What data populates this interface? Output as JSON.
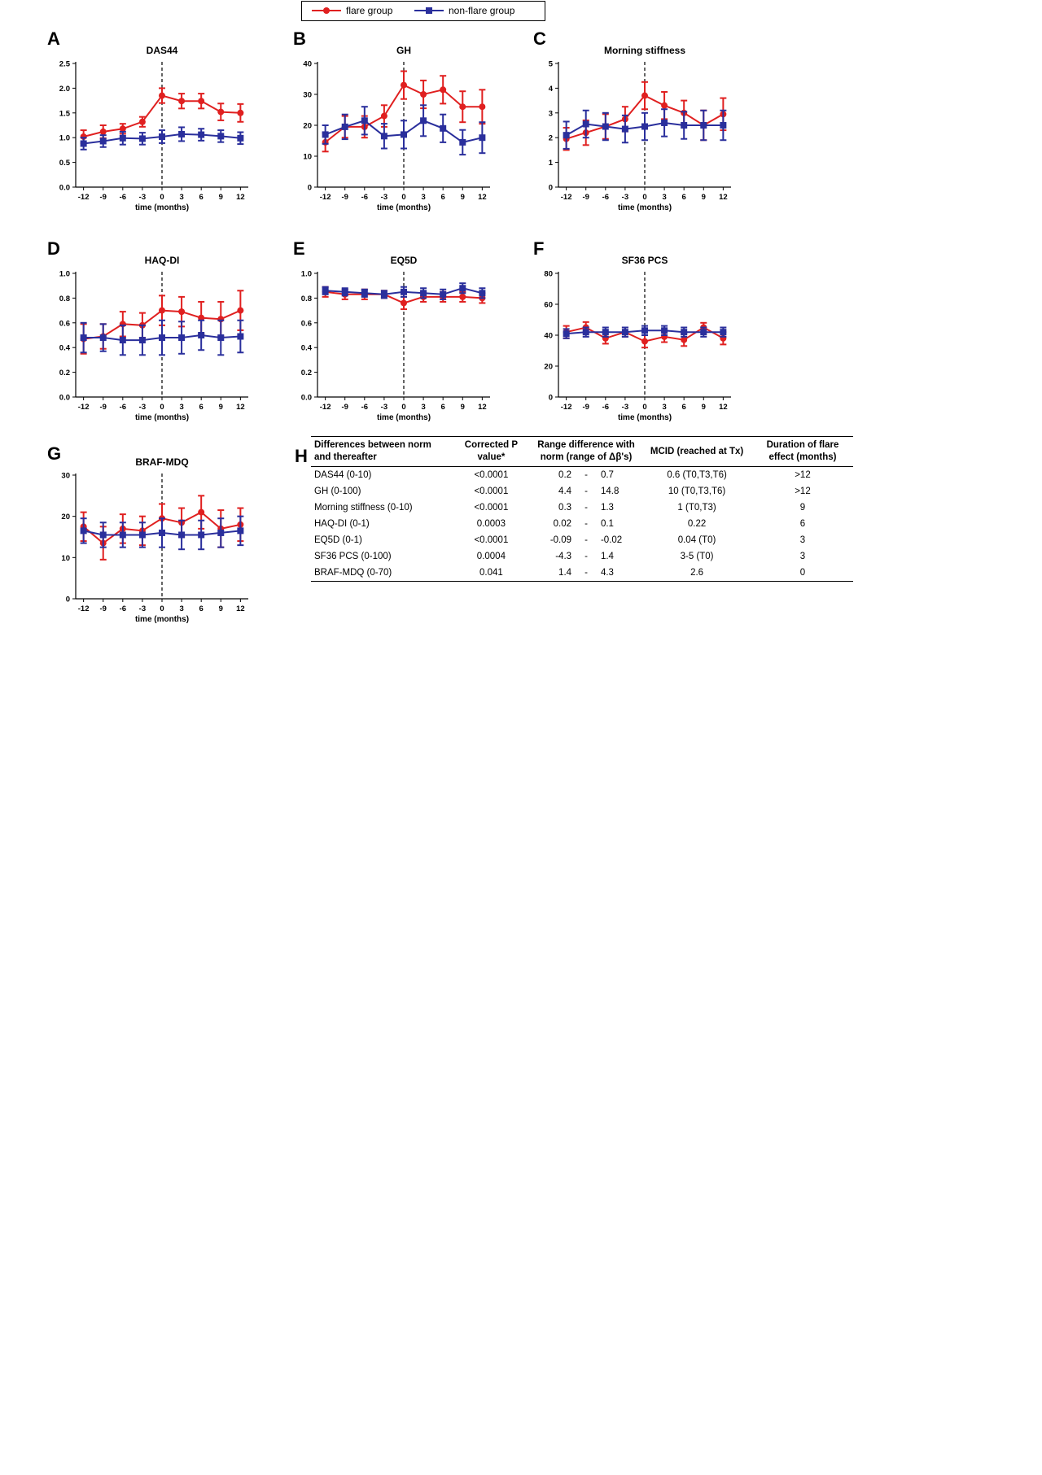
{
  "legend": {
    "flare_label": "flare group",
    "nonflare_label": "non-flare group",
    "flare_color": "#e02020",
    "nonflare_color": "#2a2f9c"
  },
  "x_ticks": [
    -12,
    -9,
    -6,
    -3,
    0,
    3,
    6,
    9,
    12
  ],
  "x_axis_label": "time (months)",
  "chart_data": [
    {
      "letter": "A",
      "title": "DAS44",
      "type": "line",
      "ylim": [
        0,
        2.5
      ],
      "yticks": [
        0.0,
        0.5,
        1.0,
        1.5,
        2.0,
        2.5
      ],
      "ydecimals": 1,
      "x": [
        -12,
        -9,
        -6,
        -3,
        0,
        3,
        6,
        9,
        12
      ],
      "series": [
        {
          "name": "flare group",
          "values": [
            1.02,
            1.12,
            1.18,
            1.32,
            1.85,
            1.74,
            1.74,
            1.52,
            1.5
          ],
          "err": [
            0.13,
            0.13,
            0.1,
            0.1,
            0.15,
            0.15,
            0.15,
            0.17,
            0.18
          ]
        },
        {
          "name": "non-flare group",
          "values": [
            0.88,
            0.93,
            0.99,
            0.98,
            1.02,
            1.07,
            1.06,
            1.03,
            0.99
          ],
          "err": [
            0.12,
            0.12,
            0.13,
            0.12,
            0.13,
            0.14,
            0.12,
            0.12,
            0.12
          ]
        }
      ]
    },
    {
      "letter": "B",
      "title": "GH",
      "type": "line",
      "ylim": [
        0,
        40
      ],
      "yticks": [
        0,
        10,
        20,
        30,
        40
      ],
      "ydecimals": 0,
      "x": [
        -12,
        -9,
        -6,
        -3,
        0,
        3,
        6,
        9,
        12
      ],
      "series": [
        {
          "name": "flare group",
          "values": [
            14.5,
            19.5,
            19.5,
            23.0,
            33.0,
            30.0,
            31.5,
            26.0,
            26.0
          ],
          "err": [
            3.0,
            3.5,
            3.5,
            3.5,
            4.5,
            4.5,
            4.5,
            5.0,
            5.5
          ]
        },
        {
          "name": "non-flare group",
          "values": [
            17.0,
            19.5,
            21.5,
            16.5,
            17.0,
            21.5,
            19.0,
            14.5,
            16.0
          ],
          "err": [
            3.0,
            4.0,
            4.5,
            4.0,
            4.5,
            5.0,
            4.5,
            4.0,
            5.0
          ]
        }
      ]
    },
    {
      "letter": "C",
      "title": "Morning stiffness",
      "type": "line",
      "ylim": [
        0,
        5
      ],
      "yticks": [
        0,
        1,
        2,
        3,
        4,
        5
      ],
      "ydecimals": 0,
      "x": [
        -12,
        -9,
        -6,
        -3,
        0,
        3,
        6,
        9,
        12
      ],
      "series": [
        {
          "name": "flare group",
          "values": [
            1.95,
            2.2,
            2.45,
            2.75,
            3.7,
            3.3,
            3.0,
            2.5,
            2.95
          ],
          "err": [
            0.45,
            0.5,
            0.5,
            0.5,
            0.55,
            0.55,
            0.5,
            0.6,
            0.65
          ]
        },
        {
          "name": "non-flare group",
          "values": [
            2.1,
            2.55,
            2.45,
            2.35,
            2.45,
            2.6,
            2.5,
            2.5,
            2.5
          ],
          "err": [
            0.55,
            0.55,
            0.55,
            0.55,
            0.55,
            0.55,
            0.55,
            0.6,
            0.6
          ]
        }
      ]
    },
    {
      "letter": "D",
      "title": "HAQ-DI",
      "type": "line",
      "ylim": [
        0,
        1.0
      ],
      "yticks": [
        0.0,
        0.2,
        0.4,
        0.6,
        0.8,
        1.0
      ],
      "ydecimals": 1,
      "x": [
        -12,
        -9,
        -6,
        -3,
        0,
        3,
        6,
        9,
        12
      ],
      "series": [
        {
          "name": "flare group",
          "values": [
            0.47,
            0.49,
            0.59,
            0.58,
            0.7,
            0.69,
            0.64,
            0.63,
            0.7
          ],
          "err": [
            0.12,
            0.1,
            0.1,
            0.1,
            0.12,
            0.12,
            0.13,
            0.14,
            0.16
          ]
        },
        {
          "name": "non-flare group",
          "values": [
            0.48,
            0.48,
            0.46,
            0.46,
            0.48,
            0.48,
            0.5,
            0.48,
            0.49
          ],
          "err": [
            0.12,
            0.11,
            0.12,
            0.12,
            0.14,
            0.13,
            0.12,
            0.14,
            0.13
          ]
        }
      ]
    },
    {
      "letter": "E",
      "title": "EQ5D",
      "type": "line",
      "ylim": [
        0,
        1.0
      ],
      "yticks": [
        0.0,
        0.2,
        0.4,
        0.6,
        0.8,
        1.0
      ],
      "ydecimals": 1,
      "x": [
        -12,
        -9,
        -6,
        -3,
        0,
        3,
        6,
        9,
        12
      ],
      "series": [
        {
          "name": "flare group",
          "values": [
            0.85,
            0.83,
            0.83,
            0.83,
            0.76,
            0.81,
            0.81,
            0.81,
            0.8
          ],
          "err": [
            0.04,
            0.04,
            0.04,
            0.03,
            0.05,
            0.04,
            0.04,
            0.04,
            0.04
          ]
        },
        {
          "name": "non-flare group",
          "values": [
            0.86,
            0.85,
            0.84,
            0.83,
            0.85,
            0.84,
            0.83,
            0.88,
            0.84
          ],
          "err": [
            0.03,
            0.03,
            0.03,
            0.03,
            0.04,
            0.04,
            0.04,
            0.04,
            0.04
          ]
        }
      ]
    },
    {
      "letter": "F",
      "title": "SF36 PCS",
      "type": "line",
      "ylim": [
        0,
        80
      ],
      "yticks": [
        0,
        20,
        40,
        60,
        80
      ],
      "ydecimals": 0,
      "x": [
        -12,
        -9,
        -6,
        -3,
        0,
        3,
        6,
        9,
        12
      ],
      "series": [
        {
          "name": "flare group",
          "values": [
            42,
            45,
            38,
            42,
            36,
            39,
            37,
            45,
            38
          ],
          "err": [
            4,
            3.5,
            3.5,
            3,
            4,
            3.5,
            4,
            3,
            4
          ]
        },
        {
          "name": "non-flare group",
          "values": [
            41,
            42,
            42,
            42,
            43,
            43,
            42,
            42,
            42
          ],
          "err": [
            3,
            3,
            3,
            3,
            3,
            3,
            3,
            3,
            3
          ]
        }
      ]
    },
    {
      "letter": "G",
      "title": "BRAF-MDQ",
      "type": "line",
      "ylim": [
        0,
        30
      ],
      "yticks": [
        0,
        10,
        20,
        30
      ],
      "ydecimals": 0,
      "x": [
        -12,
        -9,
        -6,
        -3,
        0,
        3,
        6,
        9,
        12
      ],
      "series": [
        {
          "name": "flare group",
          "values": [
            17.5,
            13.5,
            17.0,
            16.5,
            19.5,
            18.5,
            21.0,
            17.0,
            18.0
          ],
          "err": [
            3.5,
            4.0,
            3.5,
            3.5,
            3.5,
            3.5,
            4.0,
            4.5,
            4.0
          ]
        },
        {
          "name": "non-flare group",
          "values": [
            16.5,
            15.5,
            15.5,
            15.5,
            16.0,
            15.5,
            15.5,
            16.0,
            16.5
          ],
          "err": [
            3.0,
            3.0,
            3.0,
            3.0,
            3.5,
            3.5,
            3.5,
            3.5,
            3.5
          ]
        }
      ]
    }
  ],
  "table": {
    "letter": "H",
    "headers": [
      "Differences between norm and thereafter",
      "Corrected P value*",
      "Range difference with norm (range of Δβ's)",
      "MCID (reached at Tx)",
      "Duration of flare effect (months)"
    ],
    "rows": [
      {
        "name": "DAS44 (0-10)",
        "p": "<0.0001",
        "low": "0.2",
        "dash": "-",
        "high": "0.7",
        "mcid": "0.6 (T0,T3,T6)",
        "duration": ">12"
      },
      {
        "name": "GH (0-100)",
        "p": "<0.0001",
        "low": "4.4",
        "dash": "-",
        "high": "14.8",
        "mcid": "10 (T0,T3,T6)",
        "duration": ">12"
      },
      {
        "name": "Morning stiffness (0-10)",
        "p": "<0.0001",
        "low": "0.3",
        "dash": "-",
        "high": "1.3",
        "mcid": "1 (T0,T3)",
        "duration": "9"
      },
      {
        "name": "HAQ-DI (0-1)",
        "p": "0.0003",
        "low": "0.02",
        "dash": "-",
        "high": "0.1",
        "mcid": "0.22",
        "duration": "6"
      },
      {
        "name": "EQ5D (0-1)",
        "p": "<0.0001",
        "low": "-0.09",
        "dash": "-",
        "high": "-0.02",
        "mcid": "0.04 (T0)",
        "duration": "3"
      },
      {
        "name": "SF36 PCS (0-100)",
        "p": "0.0004",
        "low": "-4.3",
        "dash": "-",
        "high": "1.4",
        "mcid": "3-5 (T0)",
        "duration": "3"
      },
      {
        "name": "BRAF-MDQ (0-70)",
        "p": "0.041",
        "low": "1.4",
        "dash": "-",
        "high": "4.3",
        "mcid": "2.6",
        "duration": "0"
      }
    ]
  }
}
